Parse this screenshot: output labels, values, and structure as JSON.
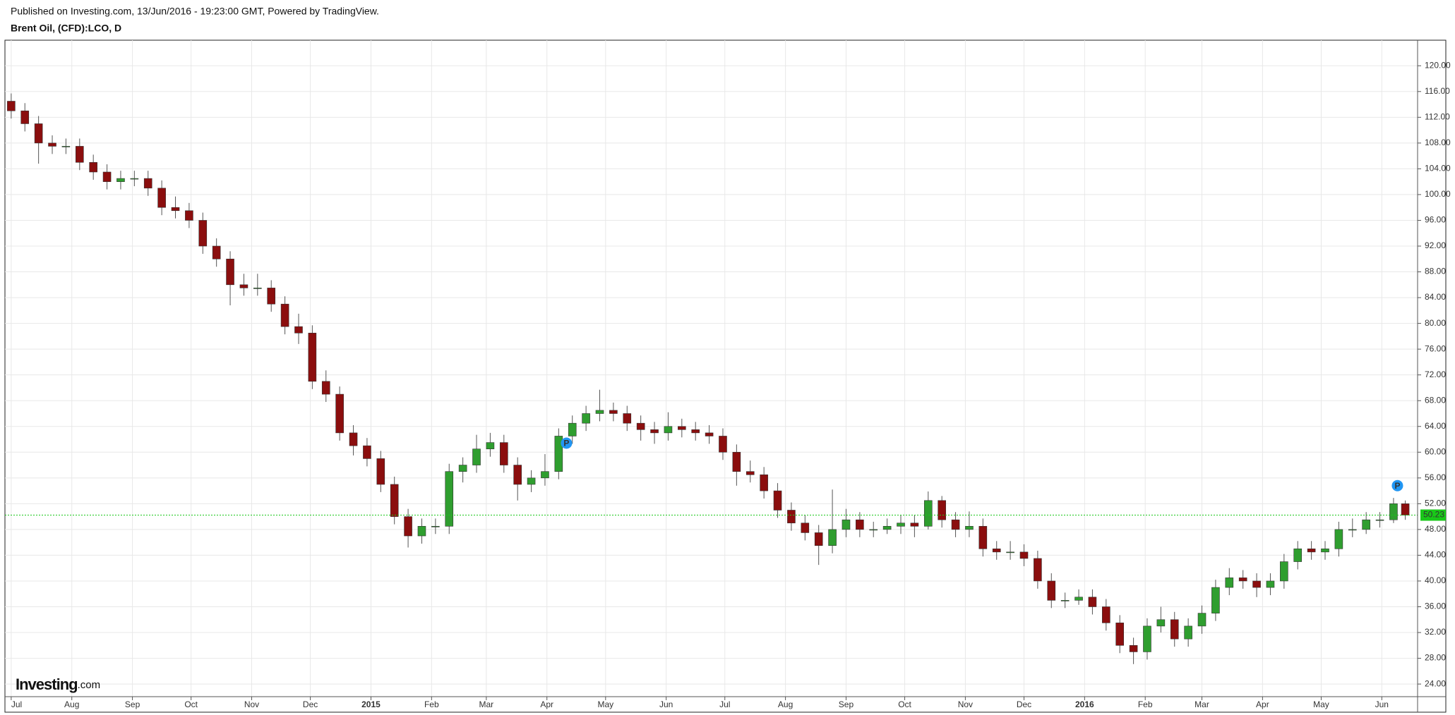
{
  "header": {
    "published": "Published on Investing.com, 13/Jun/2016 - 19:23:00 GMT, Powered by TradingView.",
    "symbol": "Brent Oil, (CFD):LCO, D"
  },
  "logo": [
    "Investing",
    ".com"
  ],
  "chart_data": {
    "type": "candlestick",
    "up_color": "#2f9e2f",
    "down_color": "#8b0e0e",
    "grid": true,
    "xlim": [
      -3.2,
      719.3
    ],
    "ylim": [
      22.04,
      123.97
    ],
    "xticks": [
      {
        "value": 0,
        "label": "Jul"
      },
      {
        "value": 31,
        "label": "Aug"
      },
      {
        "value": 62,
        "label": "Sep"
      },
      {
        "value": 92,
        "label": "Oct"
      },
      {
        "value": 123,
        "label": "Nov"
      },
      {
        "value": 153,
        "label": "Dec"
      },
      {
        "value": 184,
        "label": "2015"
      },
      {
        "value": 215,
        "label": "Feb"
      },
      {
        "value": 243,
        "label": "Mar"
      },
      {
        "value": 274,
        "label": "Apr"
      },
      {
        "value": 304,
        "label": "May"
      },
      {
        "value": 335,
        "label": "Jun"
      },
      {
        "value": 365,
        "label": "Jul"
      },
      {
        "value": 396,
        "label": "Aug"
      },
      {
        "value": 427,
        "label": "Sep"
      },
      {
        "value": 457,
        "label": "Oct"
      },
      {
        "value": 488,
        "label": "Nov"
      },
      {
        "value": 518,
        "label": "Dec"
      },
      {
        "value": 549,
        "label": "2016"
      },
      {
        "value": 580,
        "label": "Feb"
      },
      {
        "value": 609,
        "label": "Mar"
      },
      {
        "value": 640,
        "label": "Apr"
      },
      {
        "value": 670,
        "label": "May"
      },
      {
        "value": 701,
        "label": "Jun"
      }
    ],
    "yticks": [
      {
        "value": 24,
        "label": "24.00"
      },
      {
        "value": 28,
        "label": "28.00"
      },
      {
        "value": 32,
        "label": "32.00"
      },
      {
        "value": 36,
        "label": "36.00"
      },
      {
        "value": 40,
        "label": "40.00"
      },
      {
        "value": 44,
        "label": "44.00"
      },
      {
        "value": 48,
        "label": "48.00"
      },
      {
        "value": 52,
        "label": "52.00"
      },
      {
        "value": 56,
        "label": "56.00"
      },
      {
        "value": 60,
        "label": "60.00"
      },
      {
        "value": 64,
        "label": "64.00"
      },
      {
        "value": 68,
        "label": "68.00"
      },
      {
        "value": 72,
        "label": "72.00"
      },
      {
        "value": 76,
        "label": "76.00"
      },
      {
        "value": 80,
        "label": "80.00"
      },
      {
        "value": 84,
        "label": "84.00"
      },
      {
        "value": 88,
        "label": "88.00"
      },
      {
        "value": 92,
        "label": "92.00"
      },
      {
        "value": 96,
        "label": "96.00"
      },
      {
        "value": 100,
        "label": "100.00"
      },
      {
        "value": 104,
        "label": "104.00"
      },
      {
        "value": 108,
        "label": "108.00"
      },
      {
        "value": 112,
        "label": "112.00"
      },
      {
        "value": 116,
        "label": "116.00"
      },
      {
        "value": 120,
        "label": "120.00"
      }
    ],
    "x": [
      0,
      7,
      14,
      21,
      28,
      35,
      42,
      49,
      56,
      63,
      70,
      77,
      84,
      91,
      98,
      105,
      112,
      119,
      126,
      133,
      140,
      147,
      154,
      161,
      168,
      175,
      182,
      189,
      196,
      203,
      210,
      217,
      224,
      231,
      238,
      245,
      252,
      259,
      266,
      273,
      280,
      287,
      294,
      301,
      308,
      315,
      322,
      329,
      336,
      343,
      350,
      357,
      364,
      371,
      378,
      385,
      392,
      399,
      406,
      413,
      420,
      427,
      434,
      441,
      448,
      455,
      462,
      469,
      476,
      483,
      490,
      497,
      504,
      511,
      518,
      525,
      532,
      539,
      546,
      553,
      560,
      567,
      574,
      581,
      588,
      595,
      602,
      609,
      616,
      623,
      630,
      637,
      644,
      651,
      658,
      665,
      672,
      679,
      686,
      693,
      700,
      707,
      713
    ],
    "open": [
      114.5,
      113,
      111,
      108,
      107.5,
      107.5,
      105,
      103.5,
      102,
      102.5,
      102.5,
      101,
      98,
      97.5,
      96,
      92,
      90,
      86,
      85.5,
      85.5,
      83,
      79.5,
      78.5,
      71,
      69,
      63,
      61,
      59,
      55,
      50,
      47,
      48.5,
      48.5,
      57,
      58,
      60.5,
      61.5,
      58,
      55,
      56,
      57,
      62.5,
      64.5,
      66,
      66.5,
      66,
      64.5,
      63.5,
      63,
      64,
      63.5,
      63,
      62.5,
      60,
      57,
      56.5,
      54,
      51,
      49,
      47.5,
      45.5,
      48,
      49.5,
      48,
      48,
      48.5,
      49,
      48.5,
      52.5,
      49.5,
      48,
      48.5,
      45,
      44.5,
      44.5,
      43.5,
      40,
      37,
      37,
      37.5,
      36,
      33.5,
      30,
      29,
      33,
      34,
      31,
      33,
      35,
      39,
      40.5,
      40,
      39,
      40,
      43,
      45,
      44.5,
      45,
      48,
      48,
      49.5,
      49.5,
      52
    ],
    "high": [
      115.7,
      114.2,
      112.2,
      109.2,
      108.7,
      108.7,
      106.2,
      104.7,
      103.7,
      103.7,
      103.7,
      102.2,
      99.7,
      98.7,
      97.2,
      93.2,
      91.2,
      87.7,
      87.7,
      86.7,
      84.2,
      81.5,
      79.7,
      72.7,
      70.2,
      64.2,
      62.2,
      60.2,
      56.2,
      51.2,
      49.7,
      49.7,
      58.2,
      59.2,
      62.7,
      63,
      62.7,
      59.2,
      57.2,
      59.7,
      63.7,
      65.7,
      67.2,
      69.7,
      67.7,
      67.2,
      65.7,
      64.7,
      66.2,
      65.2,
      64.7,
      64.2,
      63.7,
      61.2,
      58.7,
      57.7,
      55.2,
      52.2,
      50.2,
      48.7,
      54.2,
      51.2,
      50.7,
      49.2,
      49.7,
      50.2,
      50.2,
      53.9,
      53.2,
      50.7,
      50.8,
      49.7,
      46.2,
      46.2,
      45.7,
      44.7,
      41.2,
      38.2,
      38.7,
      38.7,
      37.2,
      34.7,
      31.2,
      34.2,
      36,
      35.2,
      34.2,
      36.2,
      40.2,
      42,
      41.7,
      41.2,
      41.2,
      44.2,
      46.2,
      46.2,
      46.2,
      49.2,
      49.7,
      50.7,
      50.7,
      52.9,
      52.5
    ],
    "low": [
      111.8,
      109.8,
      104.8,
      106.3,
      106.3,
      103.8,
      102.3,
      100.8,
      100.8,
      101.3,
      99.8,
      96.8,
      96.3,
      94.8,
      90.8,
      88.8,
      82.8,
      84.3,
      84.3,
      81.8,
      78.3,
      76.8,
      69.8,
      67.8,
      61.8,
      59.5,
      57.8,
      53.8,
      48.8,
      45.2,
      45.8,
      47.3,
      47.3,
      55.3,
      56.8,
      59.3,
      56.8,
      52.5,
      53.8,
      54.8,
      55.8,
      61.3,
      63.3,
      64.8,
      64.8,
      63.3,
      61.8,
      61.3,
      61.8,
      62.3,
      61.8,
      61.3,
      58.8,
      54.8,
      55.3,
      52.8,
      49.8,
      47.8,
      46.3,
      42.5,
      44.3,
      46.8,
      46.8,
      46.8,
      47.3,
      47.3,
      46.8,
      48,
      48.3,
      46.8,
      46.8,
      43.8,
      43.3,
      43.3,
      42.3,
      38.8,
      35.8,
      35.8,
      36.3,
      34.8,
      32.3,
      28.8,
      27.1,
      27.8,
      32,
      29.8,
      29.8,
      31.8,
      33.8,
      37.8,
      38.8,
      37.5,
      37.8,
      38.8,
      41.8,
      43.3,
      43.3,
      43.8,
      46.8,
      47.3,
      48.3,
      49,
      49.5
    ],
    "close": [
      113,
      111,
      108,
      107.5,
      107.5,
      105,
      103.5,
      102,
      102.5,
      102.5,
      101,
      98,
      97.5,
      96,
      92,
      90,
      86,
      85.5,
      85.5,
      83,
      79.5,
      78.5,
      71,
      69,
      63,
      61,
      59,
      55,
      50,
      47,
      48.5,
      48.5,
      57,
      58,
      60.5,
      61.5,
      58,
      55,
      56,
      57,
      62.5,
      64.5,
      66,
      66.5,
      66,
      64.5,
      63.5,
      63,
      64,
      63.5,
      63,
      62.5,
      60,
      57,
      56.5,
      54,
      51,
      49,
      47.5,
      45.5,
      48,
      49.5,
      48,
      48,
      48.5,
      49,
      48.5,
      52.5,
      49.5,
      48,
      48.5,
      45,
      44.5,
      44.5,
      43.5,
      40,
      37,
      37,
      37.5,
      36,
      33.5,
      30,
      29,
      33,
      34,
      31,
      33,
      35,
      39,
      40.5,
      40,
      39,
      40,
      43,
      45,
      44.5,
      45,
      48,
      48,
      49.5,
      49.5,
      52,
      50.23
    ],
    "last_price": 50.23,
    "last_price_color": "#19c819",
    "markers": [
      {
        "x": 284,
        "y": 61.4,
        "label": "P"
      },
      {
        "x": 709,
        "y": 54.8,
        "label": "P"
      }
    ],
    "marker_color": "#2196f3"
  }
}
